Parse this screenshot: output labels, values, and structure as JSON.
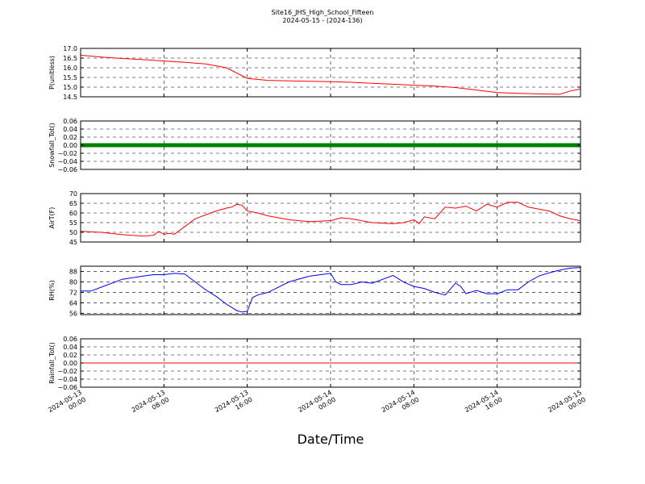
{
  "figure": {
    "title_line1": "Site16_JHS_High_School_Fifteen",
    "title_line2": "2024-05-15 - (2024-136)",
    "xlabel": "Date/Time"
  },
  "chart_data": [
    {
      "type": "line",
      "ylabel": "P(unitless)",
      "color": "#ff0000",
      "ylim": [
        14.5,
        17.0
      ],
      "yticks": [
        "14.5",
        "15.0",
        "15.5",
        "16.0",
        "16.5",
        "17.0"
      ],
      "grid": true,
      "x_hours": [
        0,
        2,
        4,
        6,
        8,
        10,
        12,
        14,
        16,
        18,
        20,
        22,
        24,
        26,
        28,
        30,
        32,
        34,
        36,
        38,
        40,
        42,
        44,
        46,
        47,
        48
      ],
      "series": [
        {
          "values": [
            16.65,
            16.55,
            16.48,
            16.42,
            16.35,
            16.28,
            16.2,
            16.0,
            15.45,
            15.35,
            15.32,
            15.3,
            15.28,
            15.25,
            15.2,
            15.15,
            15.1,
            15.05,
            14.98,
            14.85,
            14.72,
            14.68,
            14.65,
            14.63,
            14.8,
            14.9
          ]
        }
      ]
    },
    {
      "type": "line",
      "ylabel": "Snowfall_Tot()",
      "color": "#008000",
      "ylim": [
        -0.06,
        0.06
      ],
      "yticks": [
        "−0.06",
        "−0.04",
        "−0.02",
        "0.00",
        "0.02",
        "0.04",
        "0.06"
      ],
      "grid": true,
      "x_hours": [
        0,
        48
      ],
      "series": [
        {
          "values": [
            0.0,
            0.0
          ]
        }
      ]
    },
    {
      "type": "line",
      "ylabel": "AirT(F)",
      "color": "#ff0000",
      "ylim": [
        45,
        70
      ],
      "yticks": [
        "45",
        "50",
        "55",
        "60",
        "65",
        "70"
      ],
      "grid": true,
      "x_hours": [
        0,
        2,
        4,
        6,
        7,
        7.5,
        8,
        8.5,
        9,
        10,
        11,
        12,
        13,
        14,
        14.5,
        15,
        15.5,
        16,
        16.5,
        17,
        18,
        20,
        22,
        24,
        25,
        26,
        28,
        30,
        31,
        32,
        32.5,
        33,
        34,
        35,
        36,
        37,
        38,
        39,
        40,
        41,
        42,
        43,
        44,
        45,
        46,
        47,
        48
      ],
      "series": [
        {
          "values": [
            50.5,
            50,
            48.8,
            48,
            48.5,
            50.5,
            49,
            49.5,
            49,
            53,
            57,
            59,
            61,
            62.5,
            63,
            64.5,
            64,
            61,
            60.5,
            60,
            58.5,
            56.5,
            55.5,
            56,
            57.5,
            57,
            55,
            54.5,
            55,
            56.5,
            54.5,
            58,
            57,
            63,
            62.5,
            63.5,
            61,
            64.5,
            63,
            65.5,
            65.5,
            63,
            62,
            61,
            58.5,
            57,
            56
          ]
        }
      ]
    },
    {
      "type": "line",
      "ylabel": "RH(%)",
      "color": "#0000ff",
      "ylim": [
        55,
        92
      ],
      "yticks": [
        "56",
        "64",
        "72",
        "80",
        "88"
      ],
      "grid": true,
      "x_hours": [
        0,
        1,
        2,
        4,
        6,
        7,
        8,
        9,
        10,
        11,
        12,
        13,
        14,
        15,
        15.5,
        16,
        16.5,
        17,
        18,
        20,
        22,
        24,
        24.5,
        25,
        26,
        27,
        28,
        30,
        31,
        32,
        33,
        34,
        35,
        36,
        36.5,
        37,
        38,
        39,
        40,
        41,
        42,
        43,
        44,
        45,
        46,
        47,
        48
      ],
      "series": [
        {
          "values": [
            73,
            73,
            76,
            82,
            84.5,
            85.5,
            85.5,
            86.5,
            86,
            80,
            74,
            69,
            63,
            58,
            57,
            57.5,
            68,
            70,
            72,
            80,
            84.5,
            86.5,
            80,
            78,
            78,
            80,
            79,
            85,
            80,
            76.5,
            75,
            72,
            70,
            79,
            76.5,
            71,
            73.5,
            71,
            71,
            74,
            74,
            80,
            84.5,
            87,
            89,
            90.5,
            91
          ]
        }
      ]
    },
    {
      "type": "line",
      "ylabel": "Rainfall_Tot()",
      "color": "#ff0000",
      "ylim": [
        -0.06,
        0.06
      ],
      "yticks": [
        "−0.06",
        "−0.04",
        "−0.02",
        "0.00",
        "0.02",
        "0.04",
        "0.06"
      ],
      "grid": true,
      "x_hours": [
        0,
        48
      ],
      "series": [
        {
          "values": [
            0.0,
            0.0
          ]
        }
      ]
    }
  ],
  "x_axis": {
    "tick_hours": [
      0,
      8,
      16,
      24,
      32,
      40,
      48
    ],
    "tick_labels": [
      [
        "2024-05-13",
        "00:00"
      ],
      [
        "2024-05-13",
        "08:00"
      ],
      [
        "2024-05-13",
        "16:00"
      ],
      [
        "2024-05-14",
        "00:00"
      ],
      [
        "2024-05-14",
        "08:00"
      ],
      [
        "2024-05-14",
        "16:00"
      ],
      [
        "2024-05-15",
        "00:00"
      ]
    ]
  }
}
